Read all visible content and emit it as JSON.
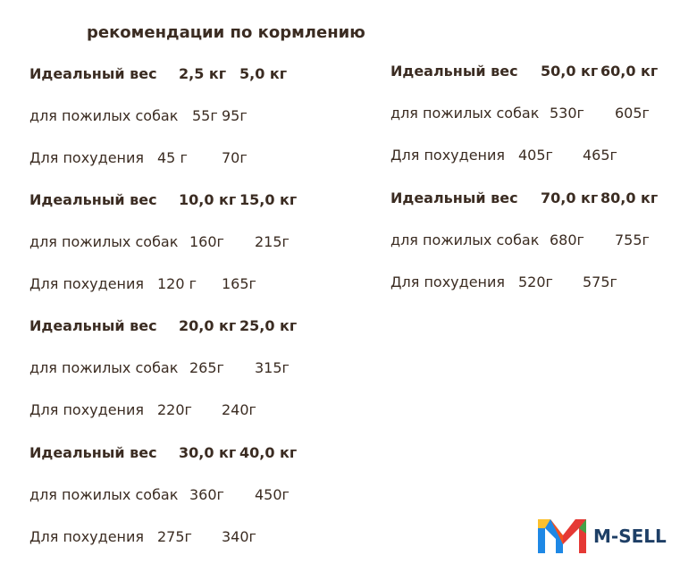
{
  "title": "рекомендации по кормлению",
  "groups": [
    {
      "rows": [
        {
          "label": "Идеальный вес",
          "values": [
            "2,5 кг",
            "5,0 кг"
          ]
        },
        {
          "label": "для пожилых собак",
          "values": [
            "55г",
            "95г"
          ]
        },
        {
          "label": "Для похудения",
          "values": [
            "45 г",
            "70г"
          ]
        }
      ]
    },
    {
      "rows": [
        {
          "label": "Идеальный вес",
          "values": [
            "10,0 кг",
            "15,0 кг"
          ]
        },
        {
          "label": "для пожилых собак",
          "values": [
            "160г",
            "215г"
          ]
        },
        {
          "label": "Для похудения",
          "values": [
            "120 г",
            "165г"
          ]
        }
      ]
    },
    {
      "rows": [
        {
          "label": "Идеальный вес",
          "values": [
            "20,0 кг",
            "25,0 кг"
          ]
        },
        {
          "label": "для пожилых собак",
          "values": [
            "265г",
            "315г"
          ]
        },
        {
          "label": "Для похудения",
          "values": [
            "220г",
            "240г"
          ]
        }
      ]
    },
    {
      "rows": [
        {
          "label": "Идеальный вес",
          "values": [
            "30,0 кг",
            "40,0 кг"
          ]
        },
        {
          "label": "для пожилых собак",
          "values": [
            "360г",
            "450г"
          ]
        },
        {
          "label": "Для похудения",
          "values": [
            "275г",
            "340г"
          ]
        }
      ]
    },
    {
      "rows": [
        {
          "label": "Идеальный вес",
          "values": [
            "50,0 кг",
            "60,0 кг"
          ]
        },
        {
          "label": "для пожилых собак",
          "values": [
            "530г",
            "605г"
          ]
        },
        {
          "label": "Для похудения",
          "values": [
            "405г",
            "465г"
          ]
        }
      ]
    },
    {
      "rows": [
        {
          "label": "Идеальный вес",
          "values": [
            "70,0 кг",
            "80,0 кг"
          ]
        },
        {
          "label": "для пожилых собак",
          "values": [
            "680г",
            "755г"
          ]
        },
        {
          "label": "Для похудения",
          "values": [
            "520г",
            "575г"
          ]
        }
      ]
    }
  ],
  "logo": {
    "text": "M-SELL"
  }
}
